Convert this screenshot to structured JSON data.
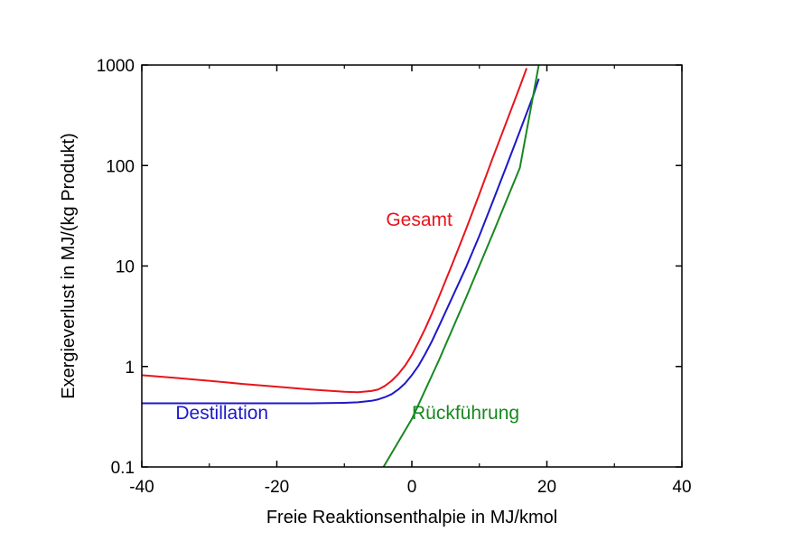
{
  "chart_data": {
    "type": "line",
    "title": "",
    "xlabel": "Freie Reaktionsenthalpie in MJ/kmol",
    "ylabel": "Exergieverlust in MJ/(kg Produkt)",
    "xlim": [
      -40,
      40
    ],
    "ylim": [
      0.1,
      1000
    ],
    "yscale": "log",
    "grid": false,
    "legend": "none",
    "x_ticks": [
      -40,
      -20,
      0,
      20,
      40
    ],
    "x_tick_labels": [
      "-40",
      "-20",
      "0",
      "20",
      "40"
    ],
    "y_ticks": [
      0.1,
      1,
      10,
      100,
      1000
    ],
    "y_tick_labels": [
      "0.1",
      "1",
      "10",
      "100",
      "1000"
    ],
    "series": [
      {
        "name": "Gesamt",
        "color": "#e8141c",
        "x": [
          -40,
          -35,
          -30,
          -25,
          -20,
          -15,
          -10,
          -8,
          -6,
          -5,
          -4,
          -3,
          -2,
          -1,
          0,
          1,
          2,
          3,
          4,
          6,
          8,
          10,
          12,
          14,
          16,
          17
        ],
        "y": [
          0.82,
          0.77,
          0.72,
          0.67,
          0.63,
          0.59,
          0.56,
          0.555,
          0.57,
          0.59,
          0.64,
          0.72,
          0.84,
          1.02,
          1.3,
          1.75,
          2.4,
          3.4,
          4.9,
          10.5,
          23,
          52,
          120,
          270,
          610,
          930
        ]
      },
      {
        "name": "Destillation",
        "color": "#1c18c8",
        "x": [
          -40,
          -30,
          -20,
          -15,
          -10,
          -8,
          -6,
          -5,
          -4,
          -3,
          -2,
          -1,
          0,
          1,
          2,
          3,
          4,
          5,
          6,
          8,
          10,
          12,
          14,
          16,
          18,
          18.8
        ],
        "y": [
          0.43,
          0.43,
          0.43,
          0.43,
          0.435,
          0.44,
          0.455,
          0.47,
          0.495,
          0.53,
          0.59,
          0.68,
          0.82,
          1.02,
          1.34,
          1.8,
          2.5,
          3.5,
          4.9,
          9.6,
          20,
          44,
          98,
          220,
          500,
          730
        ]
      },
      {
        "name": "Rückführung",
        "color": "#188820",
        "x": [
          -4.2,
          0,
          4,
          8,
          12,
          16,
          18.8
        ],
        "y": [
          0.1,
          0.3,
          1.15,
          4.8,
          21,
          95,
          1000
        ]
      }
    ]
  }
}
